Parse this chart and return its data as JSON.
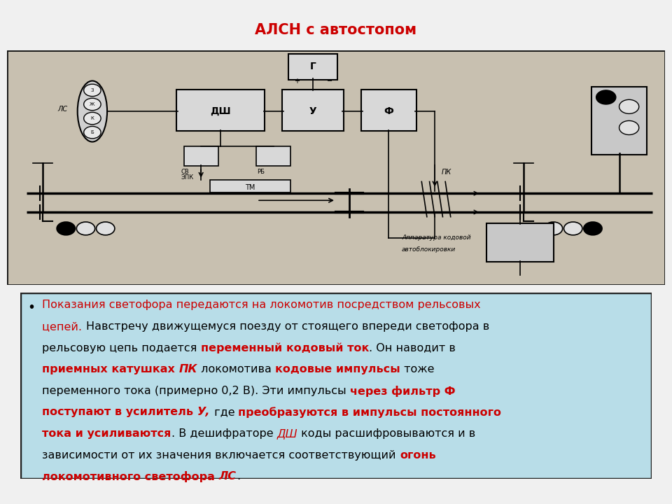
{
  "title": "АЛСН с автостопом",
  "title_color": "#cc0000",
  "title_fontsize": 15,
  "bg_color": "#f0f0f0",
  "diagram_bg": "#c8c0b0",
  "text_box_bg": "#b8dde8",
  "text_box_border": "#222222",
  "diagram_border": "#111111",
  "para1_black": "Показания светофора передаются на локомотив посредством рельсовых\nцепей. Навстречу движущемуся поезду от стоящего впереди светофора в\nрельсовую цепь подается ",
  "para1_red_bold": "переменный кодовый ток",
  "para1_black2": ". Он наводит в\n",
  "para2_red_bold": "приемных катушках ",
  "para2_red_bold_it": "ПК",
  "para2_black": " локомотива ",
  "para2_red_bold2": "кодовые импульсы",
  "para2_black2": " тоже\nпеременного тока (примерно 0,2 В). Эти импульсы ",
  "para3_red_bold": "через фильтр Ф\nпоступают в усилитель ",
  "para3_red_bold_it": "У,",
  "para3_black": " где ",
  "para3_red_bold2": "преобразуются в импульсы постоянного\nтока и усиливаются",
  "para3_black2": ". В дешифраторе ",
  "para3_red_it": "ДШ",
  "para3_black3": " коды расшифровываются и в\nзависимости от их значения включается соответствующий ",
  "para4_red_bold": "огонь\nлокомотивного светофора ",
  "para4_red_bold_it": "ЛС",
  "para4_end": "."
}
